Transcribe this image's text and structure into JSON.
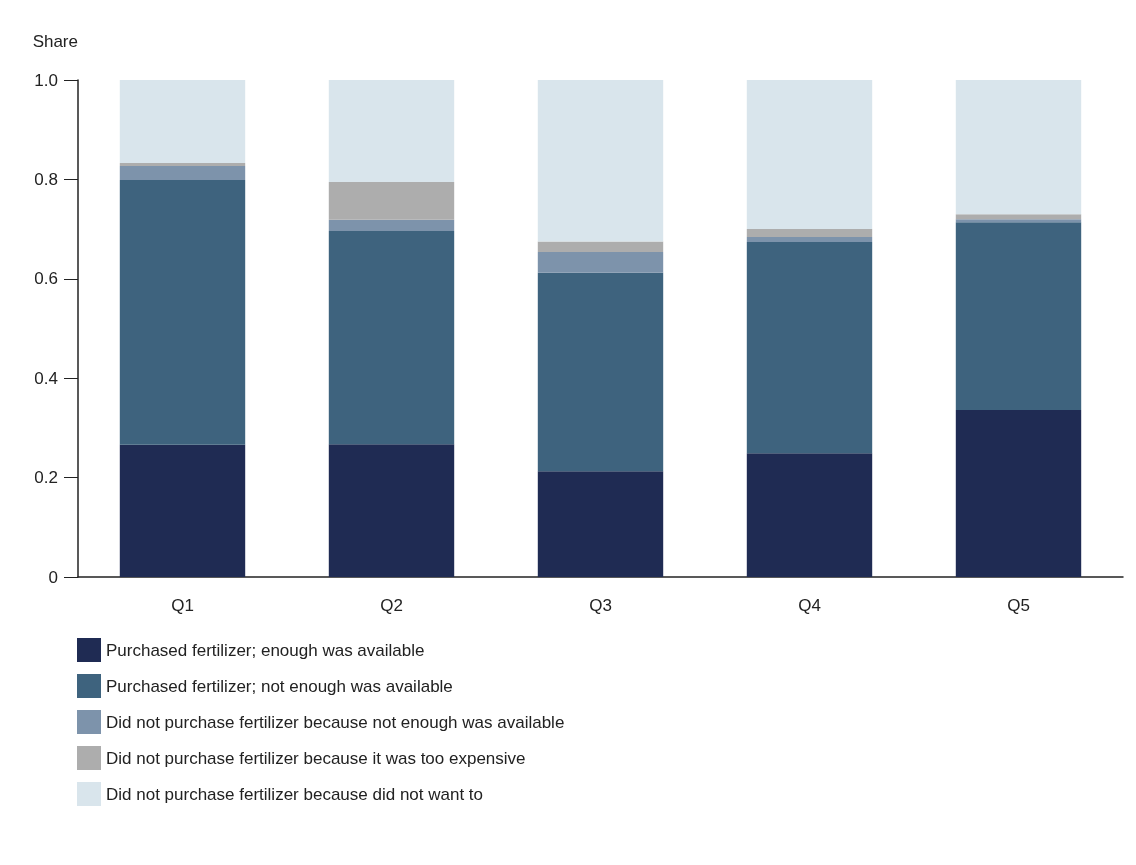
{
  "chart_data": {
    "type": "bar",
    "stacked": true,
    "ylabel": "Share",
    "categories": [
      "Q1",
      "Q2",
      "Q3",
      "Q4",
      "Q5"
    ],
    "series": [
      {
        "name": "Purchased fertilizer; enough was available",
        "color": "#1f2b53",
        "values": [
          0.266,
          0.267,
          0.213,
          0.249,
          0.336
        ]
      },
      {
        "name": "Purchased fertilizer; not enough was available",
        "color": "#3e637e",
        "values": [
          0.533,
          0.429,
          0.399,
          0.425,
          0.378
        ]
      },
      {
        "name": "Did not purchase fertilizer because not enough was available",
        "color": "#7d93ab",
        "values": [
          0.028,
          0.023,
          0.042,
          0.01,
          0.006
        ]
      },
      {
        "name": "Did not purchase fertilizer because it was too expensive",
        "color": "#adadad",
        "values": [
          0.006,
          0.076,
          0.021,
          0.016,
          0.01
        ]
      },
      {
        "name": "Did not purchase fertilizer because did not want to",
        "color": "#d9e5ec",
        "values": [
          0.167,
          0.205,
          0.325,
          0.3,
          0.27
        ]
      }
    ],
    "ylim": [
      0,
      1
    ],
    "yticks": [
      0,
      0.2,
      0.4,
      0.6,
      0.8,
      {
        "value": 1,
        "label": "1.0"
      }
    ],
    "grid": false,
    "legend": "bottom"
  }
}
